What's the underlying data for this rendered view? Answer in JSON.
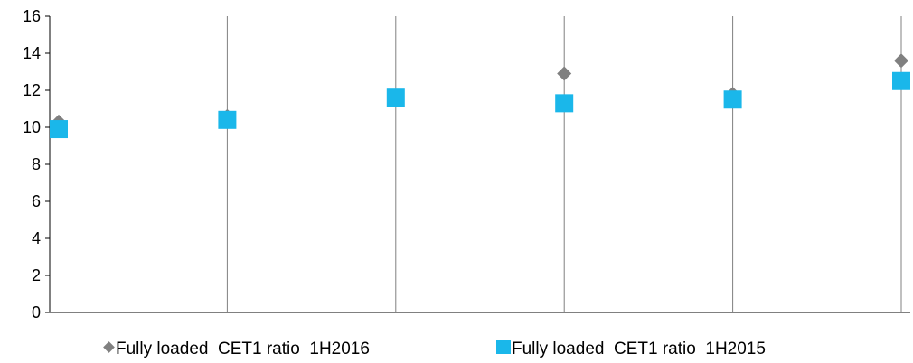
{
  "chart_data": {
    "type": "scatter",
    "title": "",
    "xlabel": "",
    "ylabel": "",
    "x": [
      1,
      2,
      3,
      4,
      5,
      6
    ],
    "ylim": [
      0,
      16
    ],
    "yticks": [
      0,
      2,
      4,
      6,
      8,
      10,
      12,
      14,
      16
    ],
    "grid": "vertical drop lines at category positions",
    "legend_position": "bottom",
    "series": [
      {
        "name": "Fully loaded  CET1 ratio  1H2016",
        "marker": "diamond",
        "color": "#808080",
        "values": [
          10.3,
          10.6,
          11.6,
          12.9,
          11.8,
          13.6
        ]
      },
      {
        "name": "Fully loaded  CET1 ratio  1H2015",
        "marker": "square",
        "color": "#1ab7ea",
        "values": [
          9.9,
          10.4,
          11.6,
          11.3,
          11.5,
          12.5
        ]
      }
    ]
  }
}
